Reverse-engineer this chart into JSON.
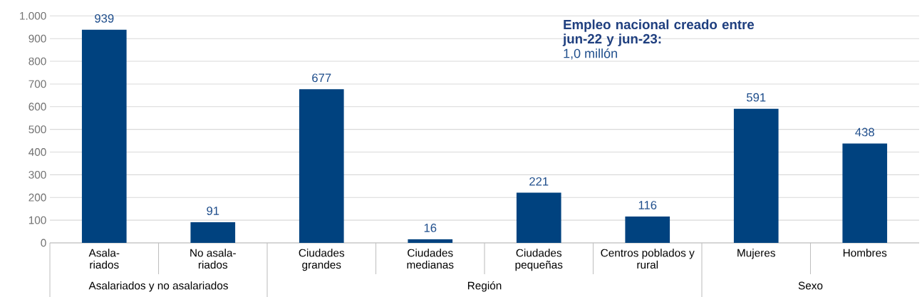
{
  "chart_data": {
    "type": "bar",
    "title": "Empleo nacional creado entre jun-22 y jun-23:",
    "annotations": [
      "1,0 millón",
      "Asalariados y no asalariados",
      "Región",
      "Sexo"
    ],
    "categories": [
      "Asala-riados",
      "No asala-riados",
      "Ciudades grandes",
      "Ciudades medianas",
      "Ciudades pequeñas",
      "Centros poblados y rural",
      "Mujeres",
      "Hombres"
    ],
    "values": [
      939,
      91,
      677,
      16,
      221,
      116,
      591,
      438
    ],
    "color": "#00427f",
    "data_labels": true,
    "grid": "y",
    "ylim": [
      0,
      1000
    ],
    "yticks": [
      0,
      100,
      200,
      300,
      400,
      500,
      600,
      700,
      800,
      900,
      {
        "value": 1000,
        "label": "1.000"
      }
    ]
  }
}
